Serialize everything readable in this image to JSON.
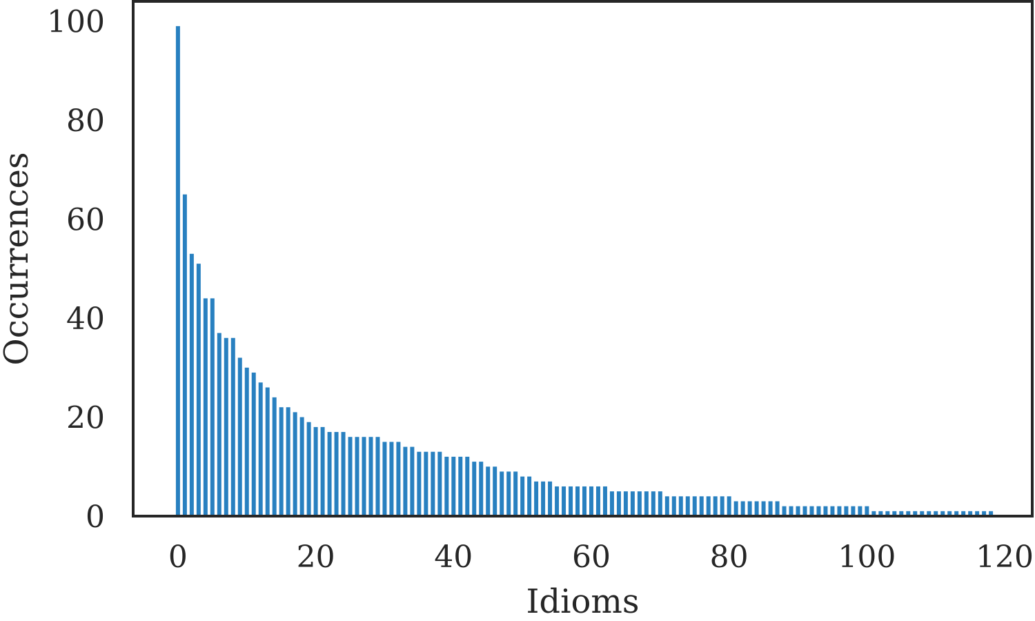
{
  "chart_data": {
    "type": "bar",
    "xlabel": "Idioms",
    "ylabel": "Occurrences",
    "xlim": [
      -6.5,
      124
    ],
    "ylim": [
      0,
      104
    ],
    "xticks": [
      0,
      20,
      40,
      60,
      80,
      100,
      120
    ],
    "yticks": [
      0,
      20,
      40,
      60,
      80,
      100
    ],
    "grid": false,
    "bar_color": "#2880c0",
    "x": [
      0,
      1,
      2,
      3,
      4,
      5,
      6,
      7,
      8,
      9,
      10,
      11,
      12,
      13,
      14,
      15,
      16,
      17,
      18,
      19,
      20,
      21,
      22,
      23,
      24,
      25,
      26,
      27,
      28,
      29,
      30,
      31,
      32,
      33,
      34,
      35,
      36,
      37,
      38,
      39,
      40,
      41,
      42,
      43,
      44,
      45,
      46,
      47,
      48,
      49,
      50,
      51,
      52,
      53,
      54,
      55,
      56,
      57,
      58,
      59,
      60,
      61,
      62,
      63,
      64,
      65,
      66,
      67,
      68,
      69,
      70,
      71,
      72,
      73,
      74,
      75,
      76,
      77,
      78,
      79,
      80,
      81,
      82,
      83,
      84,
      85,
      86,
      87,
      88,
      89,
      90,
      91,
      92,
      93,
      94,
      95,
      96,
      97,
      98,
      99,
      100,
      101,
      102,
      103,
      104,
      105,
      106,
      107,
      108,
      109,
      110,
      111,
      112,
      113,
      114,
      115,
      116,
      117,
      118
    ],
    "values": [
      99,
      65,
      53,
      51,
      44,
      44,
      37,
      36,
      36,
      32,
      30,
      29,
      27,
      26,
      24,
      22,
      22,
      21,
      20,
      19,
      18,
      18,
      17,
      17,
      17,
      16,
      16,
      16,
      16,
      16,
      15,
      15,
      15,
      14,
      14,
      13,
      13,
      13,
      13,
      12,
      12,
      12,
      12,
      11,
      11,
      10,
      10,
      9,
      9,
      9,
      8,
      8,
      7,
      7,
      7,
      6,
      6,
      6,
      6,
      6,
      6,
      6,
      6,
      5,
      5,
      5,
      5,
      5,
      5,
      5,
      5,
      4,
      4,
      4,
      4,
      4,
      4,
      4,
      4,
      4,
      4,
      3,
      3,
      3,
      3,
      3,
      3,
      3,
      2,
      2,
      2,
      2,
      2,
      2,
      2,
      2,
      2,
      2,
      2,
      2,
      2,
      1,
      1,
      1,
      1,
      1,
      1,
      1,
      1,
      1,
      1,
      1,
      1,
      1,
      1,
      1,
      1,
      1,
      1
    ]
  }
}
